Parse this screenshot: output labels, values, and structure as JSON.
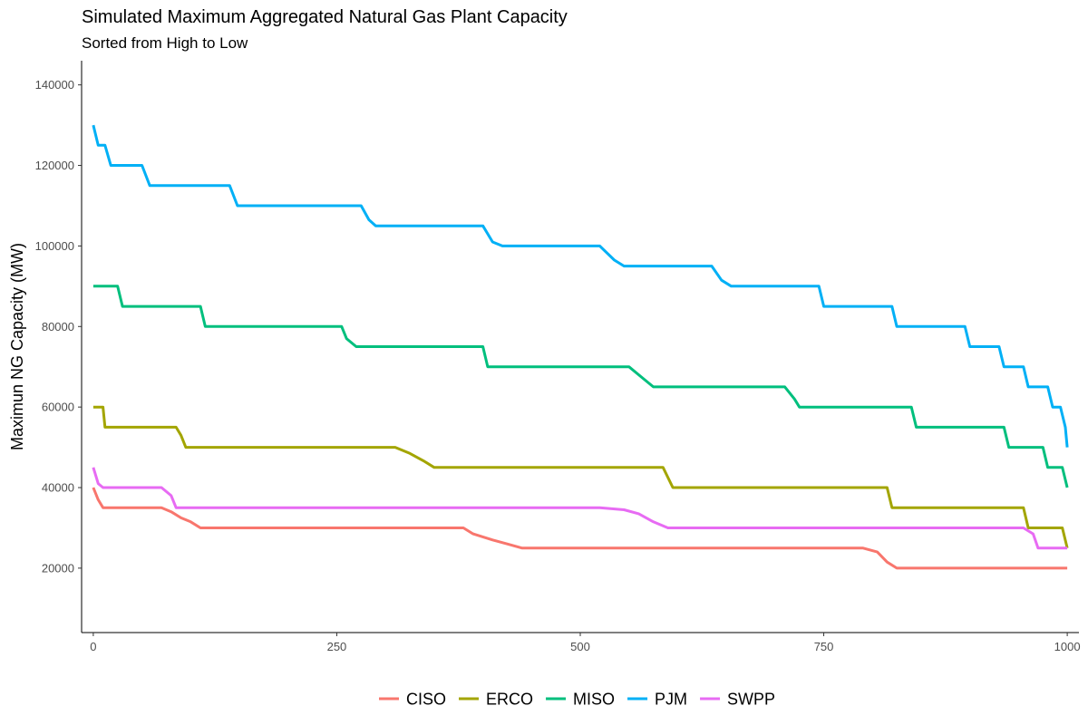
{
  "chart_data": {
    "type": "line",
    "title": "Simulated Maximum Aggregated Natural Gas Plant Capacity",
    "subtitle": "Sorted from High to Low",
    "xlabel": "",
    "ylabel": "Maximun NG Capacity (MW)",
    "xlim": [
      -12,
      1012
    ],
    "ylim": [
      4000,
      146000
    ],
    "x_ticks": [
      0,
      250,
      500,
      750,
      1000
    ],
    "x_tick_labels": [
      "0",
      "250",
      "500",
      "750",
      "1000"
    ],
    "y_ticks": [
      20000,
      40000,
      60000,
      80000,
      100000,
      120000,
      140000
    ],
    "y_tick_labels": [
      "20000",
      "40000",
      "60000",
      "80000",
      "100000",
      "120000",
      "140000"
    ],
    "grid": false,
    "legend_position": "bottom",
    "series": [
      {
        "name": "CISO",
        "color": "#F8766D",
        "points": [
          [
            0,
            40000
          ],
          [
            5,
            37000
          ],
          [
            10,
            35000
          ],
          [
            70,
            35000
          ],
          [
            80,
            34000
          ],
          [
            90,
            32500
          ],
          [
            100,
            31500
          ],
          [
            110,
            30000
          ],
          [
            380,
            30000
          ],
          [
            390,
            28500
          ],
          [
            410,
            27000
          ],
          [
            425,
            26000
          ],
          [
            440,
            25000
          ],
          [
            790,
            25000
          ],
          [
            805,
            24000
          ],
          [
            815,
            21500
          ],
          [
            825,
            20000
          ],
          [
            1000,
            20000
          ]
        ]
      },
      {
        "name": "ERCO",
        "color": "#A3A500",
        "points": [
          [
            0,
            60000
          ],
          [
            10,
            60000
          ],
          [
            12,
            55000
          ],
          [
            85,
            55000
          ],
          [
            90,
            53000
          ],
          [
            95,
            50000
          ],
          [
            310,
            50000
          ],
          [
            325,
            48500
          ],
          [
            340,
            46500
          ],
          [
            350,
            45000
          ],
          [
            585,
            45000
          ],
          [
            595,
            40000
          ],
          [
            815,
            40000
          ],
          [
            820,
            35000
          ],
          [
            955,
            35000
          ],
          [
            960,
            30000
          ],
          [
            995,
            30000
          ],
          [
            1000,
            25000
          ]
        ]
      },
      {
        "name": "MISO",
        "color": "#00BF7D",
        "points": [
          [
            0,
            90000
          ],
          [
            25,
            90000
          ],
          [
            30,
            85000
          ],
          [
            110,
            85000
          ],
          [
            115,
            80000
          ],
          [
            255,
            80000
          ],
          [
            260,
            77000
          ],
          [
            270,
            75000
          ],
          [
            400,
            75000
          ],
          [
            405,
            70000
          ],
          [
            550,
            70000
          ],
          [
            565,
            67000
          ],
          [
            575,
            65000
          ],
          [
            710,
            65000
          ],
          [
            720,
            62000
          ],
          [
            725,
            60000
          ],
          [
            840,
            60000
          ],
          [
            845,
            55000
          ],
          [
            935,
            55000
          ],
          [
            940,
            50000
          ],
          [
            975,
            50000
          ],
          [
            980,
            45000
          ],
          [
            995,
            45000
          ],
          [
            1000,
            40000
          ]
        ]
      },
      {
        "name": "PJM",
        "color": "#00B0F6",
        "points": [
          [
            0,
            130000
          ],
          [
            5,
            125000
          ],
          [
            12,
            125000
          ],
          [
            18,
            120000
          ],
          [
            50,
            120000
          ],
          [
            58,
            115000
          ],
          [
            140,
            115000
          ],
          [
            148,
            110000
          ],
          [
            275,
            110000
          ],
          [
            283,
            106500
          ],
          [
            290,
            105000
          ],
          [
            400,
            105000
          ],
          [
            410,
            101000
          ],
          [
            420,
            100000
          ],
          [
            520,
            100000
          ],
          [
            535,
            96500
          ],
          [
            545,
            95000
          ],
          [
            635,
            95000
          ],
          [
            645,
            91500
          ],
          [
            655,
            90000
          ],
          [
            745,
            90000
          ],
          [
            750,
            85000
          ],
          [
            820,
            85000
          ],
          [
            825,
            80000
          ],
          [
            895,
            80000
          ],
          [
            900,
            75000
          ],
          [
            930,
            75000
          ],
          [
            935,
            70000
          ],
          [
            955,
            70000
          ],
          [
            960,
            65000
          ],
          [
            980,
            65000
          ],
          [
            985,
            60000
          ],
          [
            993,
            60000
          ],
          [
            998,
            55000
          ],
          [
            1000,
            50000
          ]
        ]
      },
      {
        "name": "SWPP",
        "color": "#E76BF3",
        "points": [
          [
            0,
            45000
          ],
          [
            5,
            41000
          ],
          [
            10,
            40000
          ],
          [
            70,
            40000
          ],
          [
            80,
            38000
          ],
          [
            85,
            35000
          ],
          [
            520,
            35000
          ],
          [
            545,
            34500
          ],
          [
            560,
            33500
          ],
          [
            575,
            31500
          ],
          [
            590,
            30000
          ],
          [
            955,
            30000
          ],
          [
            965,
            28500
          ],
          [
            970,
            25000
          ],
          [
            1000,
            25000
          ]
        ]
      }
    ]
  }
}
